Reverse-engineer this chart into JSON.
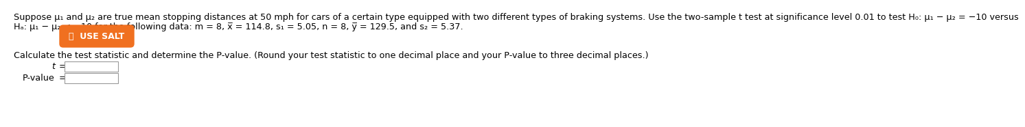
{
  "bg_color": "#ffffff",
  "line1": "Suppose μ₁ and μ₂ are true mean stopping distances at 50 mph for cars of a certain type equipped with two different types of braking systems. Use the two-sample t test at significance level 0.01 to test H₀: μ₁ − μ₂ = −10 versus",
  "line2": "Hₐ: μ₁ − μ₂ < −10 for the following data: m = 8, x̅ = 114.8, s₁ = 5.05, n = 8, y̅ = 129.5, and s₂ = 5.37.",
  "button_text": "⎂  USE SALT",
  "button_bg": "#f07020",
  "button_text_color": "#ffffff",
  "calc_text": "Calculate the test statistic and determine the P-value. (Round your test statistic to one decimal place and your P-value to three decimal places.)",
  "t_label": "t  =",
  "pvalue_label": "P-value =",
  "font_size_main": 9.2,
  "font_size_button": 9.0,
  "font_size_calc": 9.2,
  "font_size_labels": 9.2
}
